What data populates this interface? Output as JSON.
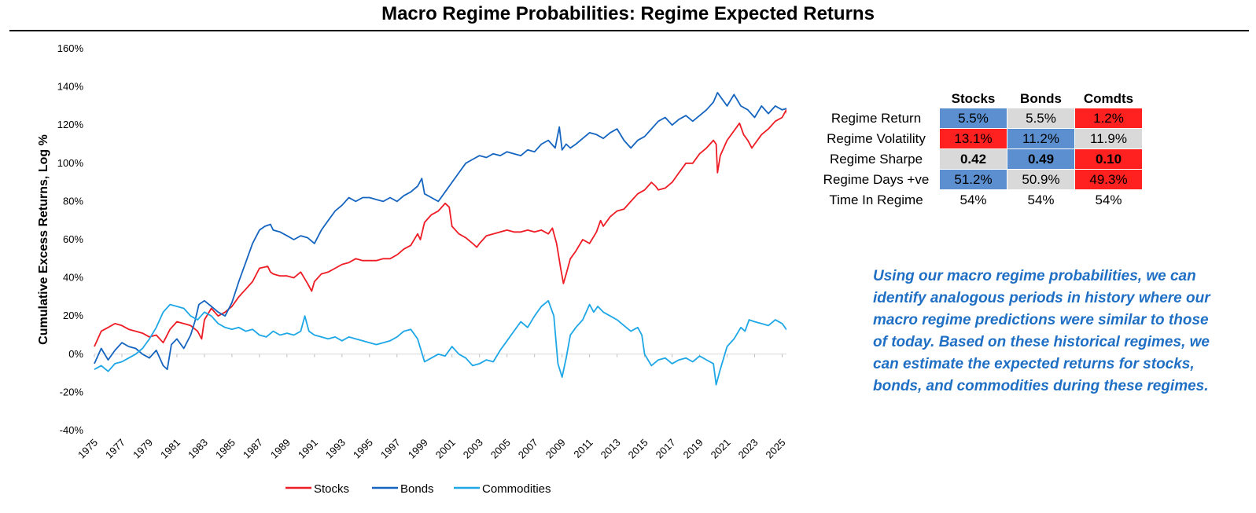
{
  "title": "Macro Regime Probabilities: Regime Expected Returns",
  "note": "Using our macro regime probabilities, we can identify analogous periods in history where our macro regime predictions were similar to those of today. Based on these historical regimes, we can estimate the expected returns for stocks, bonds, and commodities during these regimes.",
  "colors": {
    "stocks": "#ee1c25",
    "bonds": "#1565c0",
    "commodities": "#1ea7e6",
    "cell_red": "#ff2020",
    "cell_blue": "#5b8fd0",
    "cell_grey": "#d9d9d9"
  },
  "table": {
    "columns": [
      "Stocks",
      "Bonds",
      "Comdts"
    ],
    "rows": [
      {
        "label": "Regime Return",
        "values": [
          "5.5%",
          "5.5%",
          "1.2%"
        ],
        "fills": [
          "blue",
          "grey",
          "red"
        ]
      },
      {
        "label": "Regime Volatility",
        "values": [
          "13.1%",
          "11.2%",
          "11.9%"
        ],
        "fills": [
          "red",
          "blue",
          "grey"
        ]
      },
      {
        "label": "Regime Sharpe",
        "values": [
          "0.42",
          "0.49",
          "0.10"
        ],
        "fills": [
          "grey",
          "blue",
          "red"
        ],
        "bold": true
      },
      {
        "label": "Regime Days +ve",
        "values": [
          "51.2%",
          "50.9%",
          "49.3%"
        ],
        "fills": [
          "blue",
          "grey",
          "red"
        ]
      },
      {
        "label": "Time In Regime",
        "values": [
          "54%",
          "54%",
          "54%"
        ],
        "fills": [
          "none",
          "none",
          "none"
        ]
      }
    ]
  },
  "chart_data": {
    "type": "line",
    "title": "Macro Regime Probabilities: Regime Expected Returns",
    "xlabel": "",
    "ylabel": "Cumulative Excess Returns, Log %",
    "xlim": [
      1975,
      2025.6
    ],
    "ylim": [
      -40,
      160
    ],
    "yticks": [
      -40,
      -20,
      0,
      20,
      40,
      60,
      80,
      100,
      120,
      140,
      160
    ],
    "ytick_labels": [
      "-40%",
      "-20%",
      "0%",
      "20%",
      "40%",
      "60%",
      "80%",
      "100%",
      "120%",
      "140%",
      "160%"
    ],
    "xtick_labels": [
      "1975",
      "1977",
      "1979",
      "1981",
      "1983",
      "1985",
      "1987",
      "1989",
      "1991",
      "1993",
      "1995",
      "1997",
      "1999",
      "2001",
      "2003",
      "2005",
      "2007",
      "2009",
      "2011",
      "2013",
      "2015",
      "2017",
      "2019",
      "2021",
      "2023",
      "2025"
    ],
    "grid": false,
    "legend": "bottom",
    "series": [
      {
        "name": "Stocks",
        "color": "#ee1c25",
        "x": [
          1975,
          1975.5,
          1976,
          1976.5,
          1977,
          1977.5,
          1978,
          1978.5,
          1979,
          1979.5,
          1980,
          1980.5,
          1981,
          1981.5,
          1982,
          1982.5,
          1982.8,
          1983,
          1983.5,
          1984,
          1984.5,
          1985,
          1985.5,
          1986,
          1986.5,
          1987,
          1987.6,
          1987.8,
          1988,
          1988.5,
          1989,
          1989.5,
          1990,
          1990.5,
          1990.8,
          1991,
          1991.5,
          1992,
          1992.5,
          1993,
          1993.5,
          1994,
          1994.5,
          1995,
          1995.5,
          1996,
          1996.5,
          1997,
          1997.5,
          1998,
          1998.5,
          1998.7,
          1999,
          1999.5,
          2000,
          2000.5,
          2000.8,
          2001,
          2001.5,
          2002,
          2002.5,
          2002.8,
          2003,
          2003.5,
          2004,
          2004.5,
          2005,
          2005.5,
          2006,
          2006.5,
          2007,
          2007.5,
          2008,
          2008.3,
          2008.6,
          2008.9,
          2009.1,
          2009.3,
          2009.6,
          2010,
          2010.5,
          2011,
          2011.5,
          2011.8,
          2012,
          2012.5,
          2013,
          2013.5,
          2014,
          2014.5,
          2015,
          2015.5,
          2015.8,
          2016,
          2016.5,
          2017,
          2017.5,
          2018,
          2018.5,
          2019,
          2019.5,
          2020,
          2020.2,
          2020.3,
          2020.5,
          2021,
          2021.5,
          2021.9,
          2022.2,
          2022.5,
          2022.8,
          2023,
          2023.5,
          2024,
          2024.5,
          2025,
          2025.3,
          2025.5
        ],
        "y": [
          4,
          12,
          14,
          16,
          15,
          13,
          12,
          11,
          9,
          10,
          6,
          13,
          17,
          16,
          15,
          12,
          8,
          18,
          24,
          20,
          22,
          25,
          30,
          34,
          38,
          45,
          46,
          43,
          42,
          41,
          41,
          40,
          43,
          37,
          33,
          38,
          42,
          43,
          45,
          47,
          48,
          50,
          49,
          49,
          49,
          50,
          50,
          52,
          55,
          57,
          63,
          60,
          69,
          73,
          75,
          79,
          77,
          67,
          63,
          61,
          58,
          56,
          58,
          62,
          63,
          64,
          65,
          64,
          64,
          65,
          64,
          65,
          63,
          66,
          58,
          45,
          37,
          42,
          50,
          54,
          60,
          58,
          64,
          70,
          67,
          72,
          75,
          76,
          80,
          84,
          86,
          90,
          88,
          86,
          87,
          90,
          95,
          100,
          100,
          105,
          108,
          112,
          110,
          95,
          104,
          112,
          117,
          121,
          115,
          112,
          108,
          110,
          115,
          118,
          122,
          124,
          128,
          120
        ]
      },
      {
        "name": "Bonds",
        "color": "#1565c0",
        "x": [
          1975,
          1975.5,
          1976,
          1976.5,
          1977,
          1977.5,
          1978,
          1978.5,
          1979,
          1979.5,
          1980,
          1980.3,
          1980.6,
          1981,
          1981.5,
          1982,
          1982.3,
          1982.6,
          1983,
          1983.5,
          1984,
          1984.5,
          1985,
          1985.5,
          1986,
          1986.5,
          1987,
          1987.4,
          1987.8,
          1988,
          1988.5,
          1989,
          1989.5,
          1990,
          1990.5,
          1991,
          1991.5,
          1992,
          1992.5,
          1993,
          1993.5,
          1994,
          1994.5,
          1995,
          1995.5,
          1996,
          1996.5,
          1997,
          1997.5,
          1998,
          1998.5,
          1998.8,
          1999,
          1999.5,
          2000,
          2000.5,
          2001,
          2001.5,
          2002,
          2002.5,
          2003,
          2003.5,
          2004,
          2004.5,
          2005,
          2005.5,
          2006,
          2006.5,
          2007,
          2007.5,
          2008,
          2008.5,
          2008.8,
          2009,
          2009.3,
          2009.6,
          2010,
          2010.5,
          2011,
          2011.5,
          2012,
          2012.5,
          2013,
          2013.5,
          2014,
          2014.5,
          2015,
          2015.5,
          2016,
          2016.5,
          2017,
          2017.5,
          2018,
          2018.5,
          2019,
          2019.5,
          2020,
          2020.3,
          2020.6,
          2021,
          2021.5,
          2022,
          2022.5,
          2023,
          2023.5,
          2024,
          2024.5,
          2025,
          2025.5
        ],
        "y": [
          -5,
          3,
          -3,
          2,
          6,
          4,
          3,
          0,
          -2,
          2,
          -6,
          -8,
          5,
          8,
          3,
          10,
          17,
          26,
          28,
          25,
          22,
          20,
          27,
          38,
          48,
          58,
          65,
          67,
          68,
          65,
          64,
          62,
          60,
          62,
          61,
          58,
          65,
          70,
          75,
          78,
          82,
          80,
          82,
          82,
          81,
          80,
          82,
          80,
          83,
          85,
          88,
          92,
          84,
          82,
          80,
          85,
          90,
          95,
          100,
          102,
          104,
          103,
          105,
          104,
          106,
          105,
          104,
          107,
          106,
          110,
          112,
          108,
          119,
          107,
          110,
          108,
          110,
          113,
          116,
          115,
          113,
          116,
          118,
          112,
          108,
          112,
          114,
          118,
          122,
          124,
          120,
          123,
          125,
          122,
          125,
          128,
          132,
          137,
          134,
          130,
          136,
          130,
          128,
          124,
          130,
          126,
          130,
          128,
          129
        ]
      },
      {
        "name": "Commodities",
        "color": "#1ea7e6",
        "x": [
          1975,
          1975.5,
          1976,
          1976.5,
          1977,
          1977.5,
          1978,
          1978.5,
          1979,
          1979.5,
          1980,
          1980.5,
          1981,
          1981.5,
          1982,
          1982.5,
          1983,
          1983.5,
          1984,
          1984.5,
          1985,
          1985.5,
          1986,
          1986.5,
          1987,
          1987.5,
          1988,
          1988.5,
          1989,
          1989.5,
          1990,
          1990.3,
          1990.6,
          1991,
          1991.5,
          1992,
          1992.5,
          1993,
          1993.5,
          1994,
          1994.5,
          1995,
          1995.5,
          1996,
          1996.5,
          1997,
          1997.5,
          1998,
          1998.5,
          1999,
          1999.5,
          2000,
          2000.5,
          2001,
          2001.5,
          2002,
          2002.5,
          2003,
          2003.5,
          2004,
          2004.5,
          2005,
          2005.5,
          2006,
          2006.5,
          2007,
          2007.5,
          2008,
          2008.4,
          2008.7,
          2009,
          2009.3,
          2009.6,
          2010,
          2010.5,
          2011,
          2011.3,
          2011.6,
          2012,
          2012.5,
          2013,
          2013.5,
          2014,
          2014.5,
          2014.8,
          2015,
          2015.5,
          2016,
          2016.5,
          2017,
          2017.5,
          2018,
          2018.5,
          2019,
          2019.5,
          2020,
          2020.2,
          2020.5,
          2021,
          2021.5,
          2022,
          2022.3,
          2022.6,
          2023,
          2023.5,
          2024,
          2024.5,
          2025,
          2025.3,
          2025.5
        ],
        "y": [
          -8,
          -6,
          -9,
          -5,
          -4,
          -2,
          0,
          3,
          8,
          14,
          22,
          26,
          25,
          24,
          20,
          18,
          22,
          20,
          16,
          14,
          13,
          14,
          12,
          13,
          10,
          9,
          12,
          10,
          11,
          10,
          12,
          20,
          12,
          10,
          9,
          8,
          9,
          7,
          9,
          8,
          7,
          6,
          5,
          6,
          7,
          9,
          12,
          13,
          8,
          -4,
          -2,
          0,
          -1,
          4,
          0,
          -2,
          -6,
          -5,
          -3,
          -4,
          2,
          7,
          12,
          17,
          14,
          20,
          25,
          28,
          20,
          -5,
          -12,
          -2,
          10,
          14,
          18,
          26,
          22,
          25,
          22,
          20,
          18,
          15,
          12,
          14,
          10,
          0,
          -6,
          -3,
          -2,
          -5,
          -3,
          -2,
          -4,
          -1,
          -3,
          -5,
          -16,
          -8,
          4,
          8,
          14,
          12,
          18,
          17,
          16,
          15,
          18,
          16,
          13,
          12
        ]
      }
    ]
  }
}
